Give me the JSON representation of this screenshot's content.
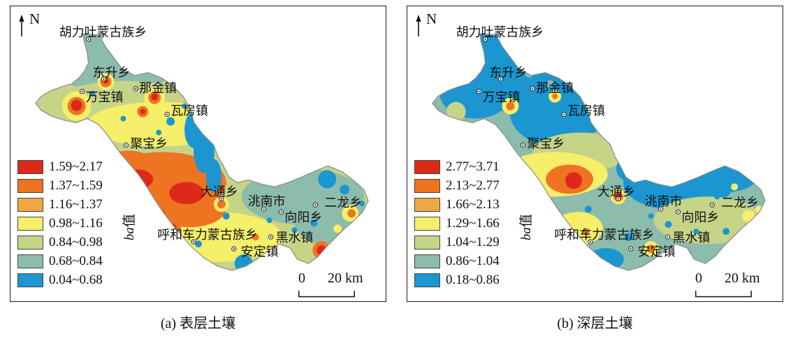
{
  "shared": {
    "north_label": "N",
    "axis_label_prefix": "ba",
    "axis_label_suffix": "值",
    "scale_zero": "0",
    "scale_label": "20 km"
  },
  "legend_colors": [
    "#dd2a18",
    "#ee7421",
    "#f0a844",
    "#f5ef69",
    "#c6d488",
    "#8cbcab",
    "#1b96d1"
  ],
  "panels": [
    {
      "id": "a",
      "caption": "(a) 表层土壤",
      "ranges": [
        "1.59~2.17",
        "1.37~1.59",
        "1.16~1.37",
        "0.98~1.16",
        "0.84~0.98",
        "0.68~0.84",
        "0.04~0.68"
      ]
    },
    {
      "id": "b",
      "caption": "(b) 深层土壤",
      "ranges": [
        "2.77~3.71",
        "2.13~2.77",
        "1.66~2.13",
        "1.29~1.66",
        "1.04~1.29",
        "0.86~1.04",
        "0.18~0.86"
      ]
    }
  ],
  "towns": [
    {
      "name": "胡力吐蒙古族乡",
      "marker": [
        112,
        46
      ],
      "label": [
        70,
        36
      ]
    },
    {
      "name": "东升乡",
      "marker": [
        134,
        103
      ],
      "label": [
        118,
        94
      ]
    },
    {
      "name": "万宝镇",
      "marker": [
        103,
        121
      ],
      "label": [
        108,
        129
      ]
    },
    {
      "name": "那金镇",
      "marker": [
        180,
        117
      ],
      "label": [
        185,
        116
      ]
    },
    {
      "name": "瓦房镇",
      "marker": [
        225,
        154
      ],
      "label": [
        230,
        149
      ]
    },
    {
      "name": "聚宝乡",
      "marker": [
        166,
        198
      ],
      "label": [
        172,
        196
      ]
    },
    {
      "name": "大通乡",
      "marker": [
        303,
        275
      ],
      "label": [
        273,
        265
      ]
    },
    {
      "name": "洮南市",
      "marker": [
        364,
        290
      ],
      "label": [
        341,
        279
      ]
    },
    {
      "name": "二龙乡",
      "marker": [
        438,
        284
      ],
      "label": [
        451,
        281
      ]
    },
    {
      "name": "向阳乡",
      "marker": [
        389,
        294
      ],
      "label": [
        394,
        302
      ]
    },
    {
      "name": "呼和车力蒙古族乡",
      "marker": [
        263,
        337
      ],
      "label": [
        211,
        327
      ]
    },
    {
      "name": "黑水镇",
      "marker": [
        374,
        330
      ],
      "label": [
        381,
        331
      ]
    },
    {
      "name": "安定镇",
      "marker": [
        321,
        347
      ],
      "label": [
        331,
        351
      ]
    }
  ]
}
